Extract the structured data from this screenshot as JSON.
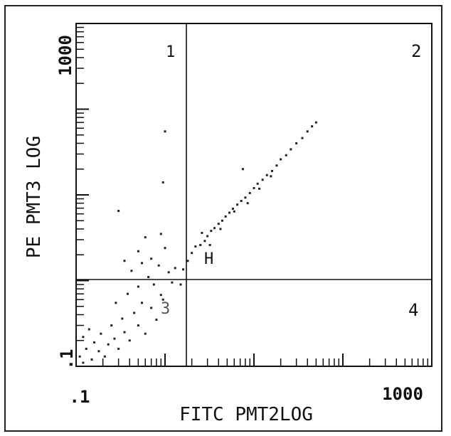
{
  "chart_data": {
    "type": "scatter",
    "title": "",
    "xlabel": "FITC PMT2LOG",
    "ylabel": "PE PMT3 LOG",
    "x_scale": "log",
    "y_scale": "log",
    "xlim": [
      0.1,
      1000
    ],
    "ylim": [
      0.1,
      1000
    ],
    "x_tick_labels": [
      ".1",
      "1000"
    ],
    "y_tick_labels": [
      ".1",
      "1000"
    ],
    "gates": {
      "x": 1.1,
      "y": 1.1
    },
    "quadrant_labels": [
      "1",
      "2",
      "3",
      "4"
    ],
    "annotations": [
      "H"
    ],
    "grid": false,
    "legend": "none",
    "series": [
      {
        "values": [
          [
            0.11,
            0.13
          ],
          [
            0.12,
            0.11
          ],
          [
            0.13,
            0.16
          ],
          [
            0.15,
            0.12
          ],
          [
            0.16,
            0.19
          ],
          [
            0.12,
            0.22
          ],
          [
            0.14,
            0.27
          ],
          [
            0.18,
            0.15
          ],
          [
            0.19,
            0.24
          ],
          [
            0.21,
            0.13
          ],
          [
            0.23,
            0.18
          ],
          [
            0.25,
            0.3
          ],
          [
            0.27,
            0.21
          ],
          [
            0.3,
            0.16
          ],
          [
            0.33,
            0.36
          ],
          [
            0.35,
            0.25
          ],
          [
            0.4,
            0.2
          ],
          [
            0.45,
            0.42
          ],
          [
            0.5,
            0.3
          ],
          [
            0.55,
            0.55
          ],
          [
            0.6,
            0.24
          ],
          [
            0.7,
            0.48
          ],
          [
            0.8,
            0.35
          ],
          [
            0.9,
            0.68
          ],
          [
            0.28,
            0.55
          ],
          [
            0.38,
            0.7
          ],
          [
            0.5,
            0.85
          ],
          [
            0.65,
            1.1
          ],
          [
            0.75,
            0.9
          ],
          [
            0.95,
            0.6
          ],
          [
            0.42,
            1.3
          ],
          [
            0.55,
            1.6
          ],
          [
            0.7,
            1.8
          ],
          [
            0.85,
            1.5
          ],
          [
            1.0,
            2.4
          ],
          [
            0.5,
            2.2
          ],
          [
            0.35,
            1.7
          ],
          [
            0.6,
            3.2
          ],
          [
            0.9,
            3.5
          ],
          [
            0.3,
            6.5
          ],
          [
            0.95,
            14
          ],
          [
            1.0,
            55
          ],
          [
            1.1,
            1.25
          ],
          [
            1.2,
            0.95
          ],
          [
            1.3,
            1.4
          ],
          [
            1.5,
            0.9
          ],
          [
            1.6,
            1.35
          ],
          [
            1.8,
            1.7
          ],
          [
            2.0,
            2.1
          ],
          [
            2.2,
            2.5
          ],
          [
            2.5,
            2.6
          ],
          [
            2.8,
            2.9
          ],
          [
            3.0,
            3.3
          ],
          [
            3.3,
            3.8
          ],
          [
            3.6,
            4.1
          ],
          [
            4.0,
            4.6
          ],
          [
            4.4,
            5.0
          ],
          [
            4.8,
            5.6
          ],
          [
            5.3,
            6.2
          ],
          [
            5.8,
            6.9
          ],
          [
            6.5,
            7.7
          ],
          [
            7.2,
            8.5
          ],
          [
            8.0,
            9.3
          ],
          [
            9.0,
            10.5
          ],
          [
            10,
            12
          ],
          [
            11,
            13.5
          ],
          [
            12.5,
            15
          ],
          [
            14,
            17
          ],
          [
            16,
            19
          ],
          [
            18,
            22
          ],
          [
            20,
            26
          ],
          [
            23,
            29
          ],
          [
            26,
            34
          ],
          [
            30,
            40
          ],
          [
            35,
            46
          ],
          [
            40,
            55
          ],
          [
            45,
            63
          ],
          [
            50,
            70
          ],
          [
            7.5,
            20
          ],
          [
            3.2,
            2.6
          ],
          [
            2.6,
            3.6
          ],
          [
            4.2,
            4.0
          ],
          [
            6.0,
            6.4
          ],
          [
            8.5,
            8.0
          ],
          [
            11.5,
            11.8
          ],
          [
            15.5,
            16.5
          ]
        ]
      }
    ]
  }
}
